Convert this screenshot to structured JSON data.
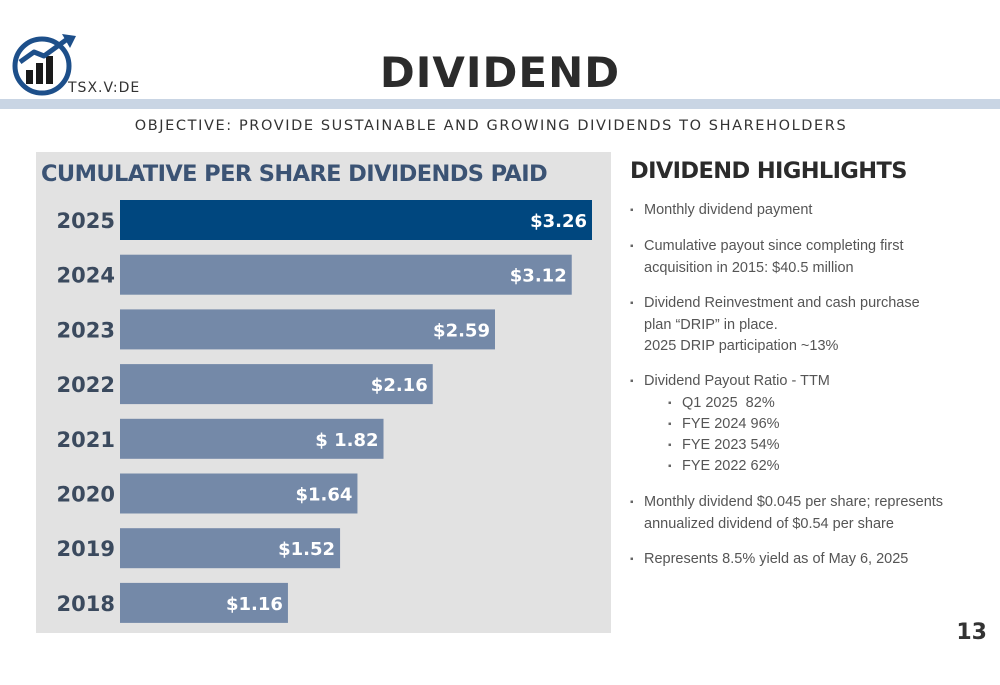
{
  "header": {
    "ticker": "TSX.V:DE",
    "title": "DIVIDEND",
    "objective": "OBJECTIVE: PROVIDE SUSTAINABLE AND GROWING DIVIDENDS TO SHAREHOLDERS"
  },
  "colors": {
    "highlight_bar": "#00477f",
    "bar": "#7489a8",
    "panel_bg": "#e2e2e2",
    "title_rule": "#c9d5e4",
    "chart_title": "#3b5374"
  },
  "chart_data": {
    "type": "bar",
    "orientation": "horizontal",
    "title": "CUMULATIVE PER SHARE DIVIDENDS PAID",
    "categories": [
      "2025",
      "2024",
      "2023",
      "2022",
      "2021",
      "2020",
      "2019",
      "2018"
    ],
    "values": [
      3.26,
      3.12,
      2.59,
      2.16,
      1.82,
      1.64,
      1.52,
      1.16
    ],
    "labels": [
      "$3.26",
      "$3.12",
      "$2.59",
      "$2.16",
      "$ 1.82",
      "$1.64",
      "$1.52",
      "$1.16"
    ],
    "highlighted_category": "2025",
    "xlim": [
      0,
      3.26
    ],
    "grid": false,
    "legend": "none"
  },
  "highlights": {
    "title": "DIVIDEND HIGHLIGHTS",
    "bullet_glyph": "▪",
    "items": [
      {
        "lines": [
          "Monthly dividend payment"
        ]
      },
      {
        "lines": [
          "Cumulative payout since completing first",
          "acquisition in 2015: $40.5 million"
        ]
      },
      {
        "lines": [
          "Dividend Reinvestment and cash purchase",
          "plan “DRIP” in place.",
          "2025 DRIP participation ~13%"
        ]
      },
      {
        "lines": [
          "Dividend Payout Ratio - TTM"
        ]
      },
      {
        "lines": [
          "Monthly dividend $0.045 per share; represents",
          "annualized dividend of $0.54 per share"
        ]
      },
      {
        "lines": [
          "Represents 8.5% yield as of May 6, 2025"
        ]
      }
    ],
    "payout_ratios": [
      "Q1 2025  82%",
      "FYE 2024 96%",
      "FYE 2023 54%",
      "FYE 2022 62%"
    ]
  },
  "page_number": "13"
}
